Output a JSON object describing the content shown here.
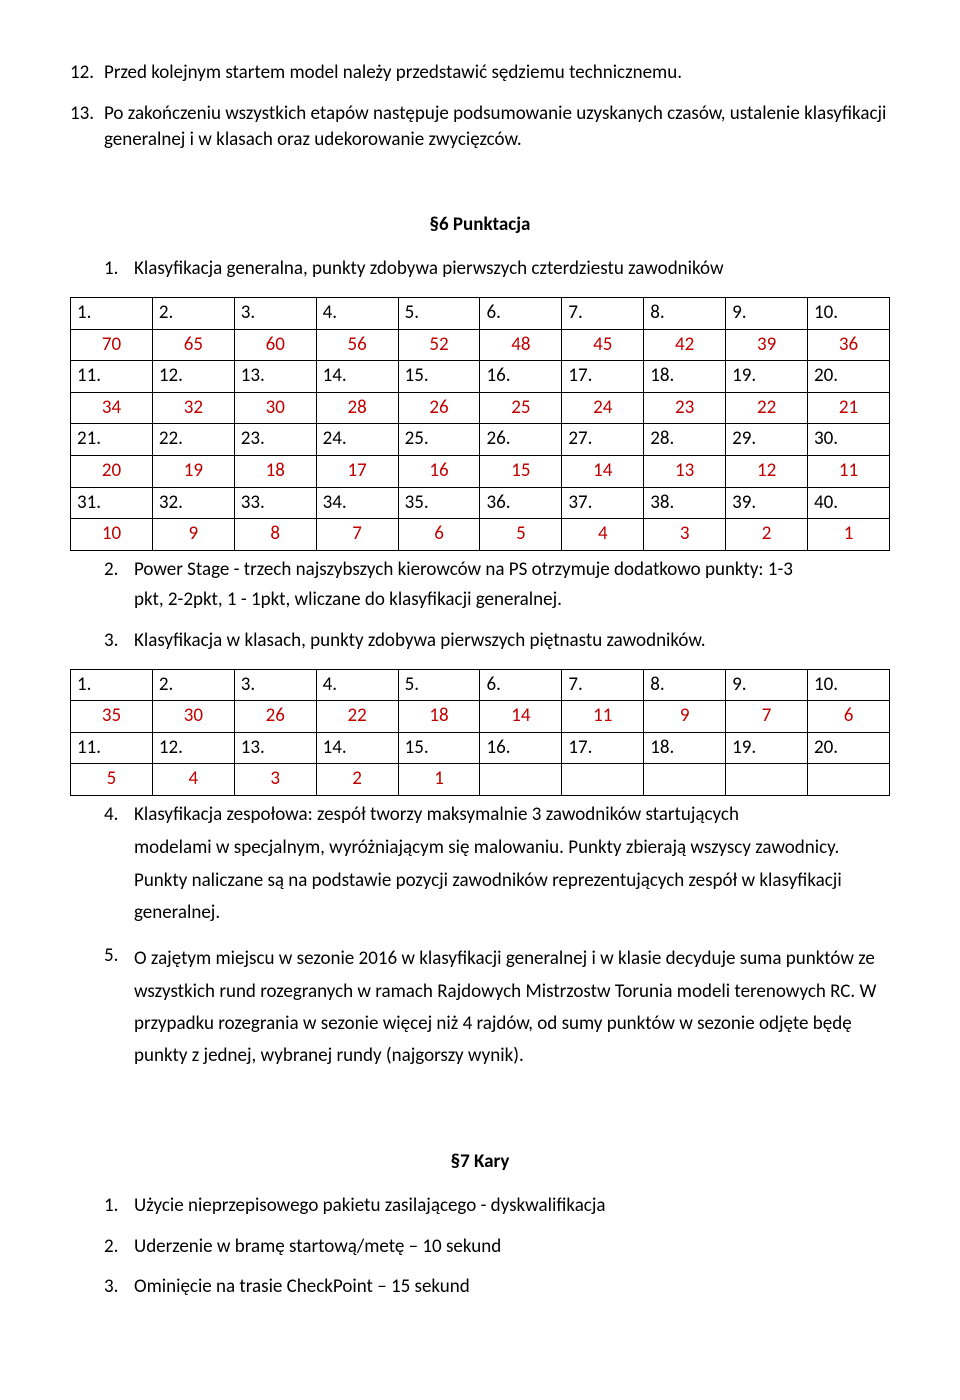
{
  "intro": {
    "item12_num": "12.",
    "item12_text": "Przed kolejnym startem model należy przedstawić sędziemu technicznemu.",
    "item13_num": "13.",
    "item13_text": "Po zakończeniu wszystkich etapów następuje podsumowanie uzyskanych czasów, ustalenie klasyfikacji generalnej i w klasach oraz udekorowanie zwycięzców."
  },
  "section6": {
    "title": "§6 Punktacja",
    "item1_num": "1.",
    "item1_text": "Klasyfikacja generalna, punkty zdobywa pierwszych czterdziestu zawodników",
    "item2_num": "2.",
    "item2_line1": "Power Stage - trzech najszybszych kierowców na PS otrzymuje dodatkowo punkty: 1-3",
    "item2_line2": "pkt, 2-2pkt, 1 - 1pkt, wliczane do klasyfikacji generalnej.",
    "item3_num": "3.",
    "item3_text": "Klasyfikacja w klasach, punkty zdobywa pierwszych piętnastu zawodników.",
    "item4_num": "4.",
    "item4_line1": "Klasyfikacja zespołowa: zespół tworzy maksymalnie 3 zawodników startujących",
    "item4_rest": "modelami w specjalnym, wyróżniającym się malowaniu. Punkty zbierają wszyscy zawodnicy. Punkty naliczane są na podstawie pozycji zawodników reprezentujących zespół w klasyfikacji generalnej.",
    "item5_num": "5.",
    "item5_text": "O zajętym miejscu w sezonie 2016 w klasyfikacji generalnej i w klasie decyduje suma punktów ze wszystkich rund rozegranych w ramach Rajdowych Mistrzostw Torunia modeli terenowych RC. W przypadku rozegrania w sezonie więcej niż 4 rajdów, od sumy punktów w sezonie odjęte będę punkty z jednej, wybranej rundy (najgorszy wynik)."
  },
  "table1": {
    "rows": [
      {
        "type": "pos",
        "cells": [
          "1.",
          "2.",
          "3.",
          "4.",
          "5.",
          "6.",
          "7.",
          "8.",
          "9.",
          "10."
        ]
      },
      {
        "type": "pts",
        "cells": [
          "70",
          "65",
          "60",
          "56",
          "52",
          "48",
          "45",
          "42",
          "39",
          "36"
        ]
      },
      {
        "type": "pos",
        "cells": [
          "11.",
          "12.",
          "13.",
          "14.",
          "15.",
          "16.",
          "17.",
          "18.",
          "19.",
          "20."
        ]
      },
      {
        "type": "pts",
        "cells": [
          "34",
          "32",
          "30",
          "28",
          "26",
          "25",
          "24",
          "23",
          "22",
          "21"
        ]
      },
      {
        "type": "pos",
        "cells": [
          "21.",
          "22.",
          "23.",
          "24.",
          "25.",
          "26.",
          "27.",
          "28.",
          "29.",
          "30."
        ]
      },
      {
        "type": "pts",
        "cells": [
          "20",
          "19",
          "18",
          "17",
          "16",
          "15",
          "14",
          "13",
          "12",
          "11"
        ]
      },
      {
        "type": "pos",
        "cells": [
          "31.",
          "32.",
          "33.",
          "34.",
          "35.",
          "36.",
          "37.",
          "38.",
          "39.",
          "40."
        ]
      },
      {
        "type": "pts",
        "cells": [
          "10",
          "9",
          "8",
          "7",
          "6",
          "5",
          "4",
          "3",
          "2",
          "1"
        ]
      }
    ]
  },
  "table2": {
    "rows": [
      {
        "type": "pos",
        "cells": [
          "1.",
          "2.",
          "3.",
          "4.",
          "5.",
          "6.",
          "7.",
          "8.",
          "9.",
          "10."
        ]
      },
      {
        "type": "pts",
        "cells": [
          "35",
          "30",
          "26",
          "22",
          "18",
          "14",
          "11",
          "9",
          "7",
          "6"
        ]
      },
      {
        "type": "pos",
        "cells": [
          "11.",
          "12.",
          "13.",
          "14.",
          "15.",
          "16.",
          "17.",
          "18.",
          "19.",
          "20."
        ]
      },
      {
        "type": "pts",
        "cells": [
          "5",
          "4",
          "3",
          "2",
          "1",
          "",
          "",
          "",
          "",
          ""
        ]
      }
    ]
  },
  "section7": {
    "title": "§7 Kary",
    "item1_num": "1.",
    "item1_text": "Użycie nieprzepisowego pakietu zasilającego - dyskwalifikacja",
    "item2_num": "2.",
    "item2_text": "Uderzenie w bramę startową/metę – 10 sekund",
    "item3_num": "3.",
    "item3_text": "Ominięcie na trasie CheckPoint – 15 sekund"
  },
  "colors": {
    "text": "#000000",
    "points_red": "#c00000",
    "table_border": "#000000",
    "background": "#ffffff"
  }
}
